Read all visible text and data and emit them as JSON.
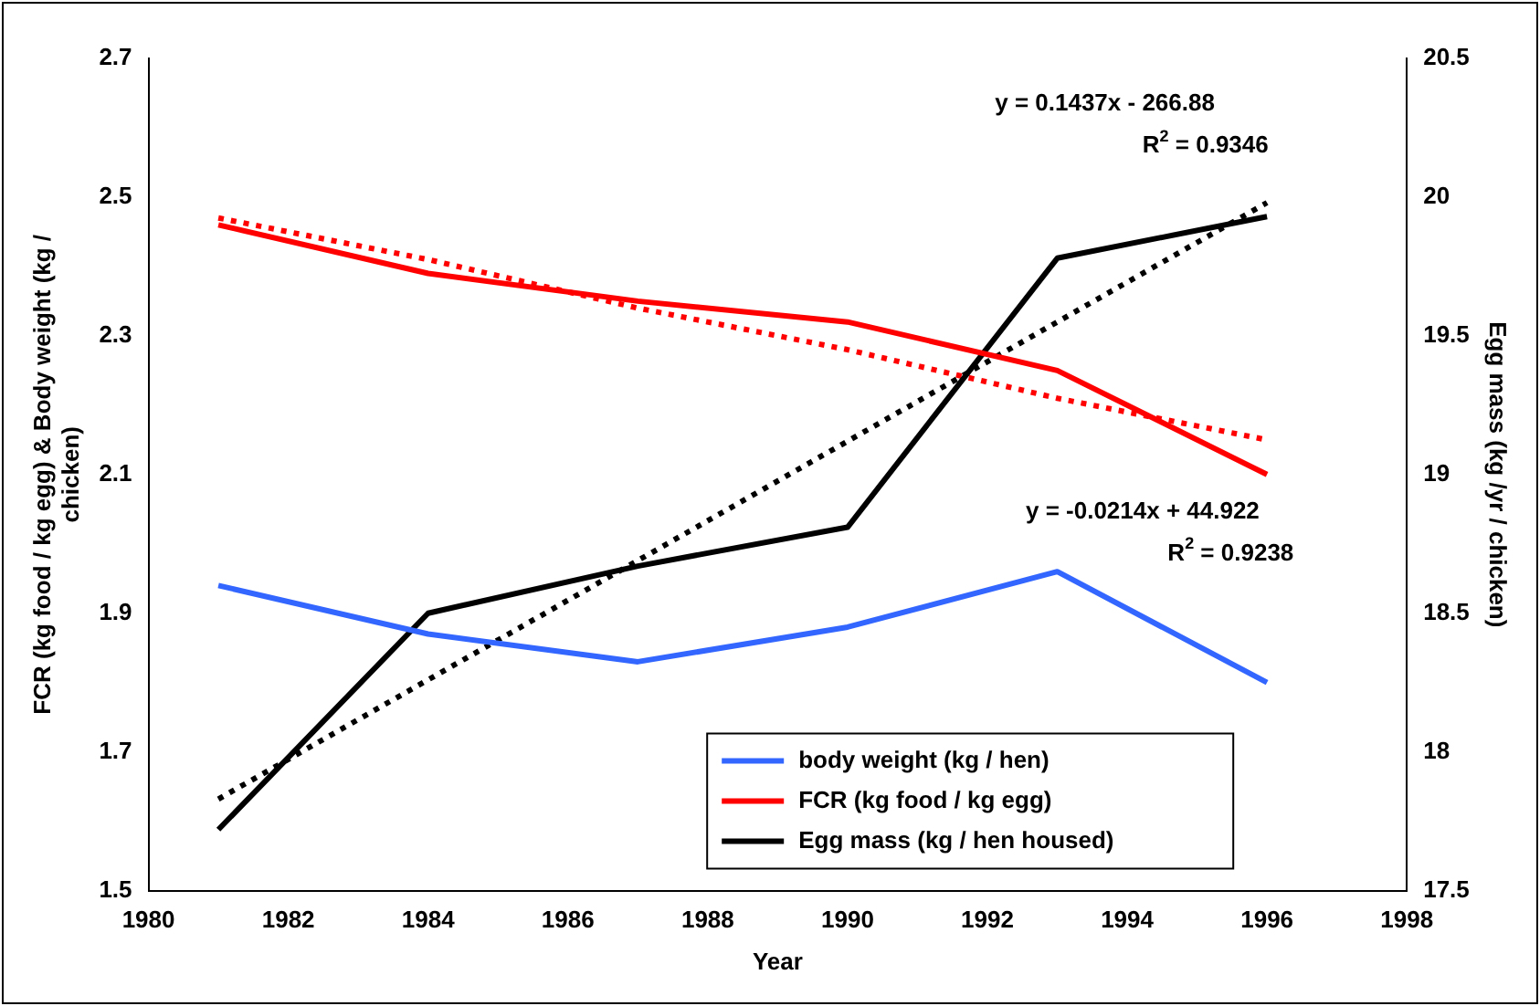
{
  "chart_data": {
    "type": "line",
    "xlabel": "Year",
    "ylabel": "FCR (kg food / kg egg) & Body weight (kg / chicken)",
    "y2label": "Egg mass (kg /yr / chicken)",
    "x": [
      1981,
      1984,
      1987,
      1990,
      1993,
      1996
    ],
    "series": [
      {
        "name": "body weight (kg / hen)",
        "color": "#3366ff",
        "values": [
          1.94,
          1.87,
          1.83,
          1.88,
          1.96,
          1.8
        ]
      },
      {
        "name": "FCR (kg food / kg egg)",
        "color": "#ff0000",
        "values": [
          2.46,
          2.39,
          2.35,
          2.32,
          2.25,
          2.1
        ]
      },
      {
        "name": "Egg mass (kg / hen housed)",
        "color": "#000000",
        "axis": "y2",
        "values": [
          17.72,
          18.5,
          18.67,
          18.81,
          19.78,
          19.93
        ]
      },
      {
        "color": "#ff0000",
        "values": [
          2.47,
          2.41,
          2.34,
          2.28,
          2.21,
          2.15
        ],
        "line_style": "dotted"
      },
      {
        "color": "#000000",
        "axis": "y2",
        "values": [
          17.83,
          18.26,
          18.69,
          19.12,
          19.55,
          19.98
        ],
        "line_style": "dotted"
      }
    ],
    "xlim": [
      1980,
      1998
    ],
    "xticks": [
      1980,
      1982,
      1984,
      1986,
      1988,
      1990,
      1992,
      1994,
      1996,
      1998
    ],
    "ylim": [
      1.5,
      2.7
    ],
    "yticks": [
      1.5,
      1.7,
      1.9,
      2.1,
      2.3,
      2.5,
      2.7
    ],
    "y2lim": [
      17.5,
      20.5
    ],
    "y2ticks": [
      17.5,
      18,
      18.5,
      19,
      19.5,
      20,
      20.5
    ],
    "annotations": [
      "y = 0.1437x - 266.88",
      "R$^{2}$ = 0.9346",
      "y = -0.0214x + 44.922",
      "R$^{2}$ = 0.9238"
    ],
    "grid": false,
    "legend": "bottom right",
    "marker": "none",
    "line_style": "solid"
  }
}
